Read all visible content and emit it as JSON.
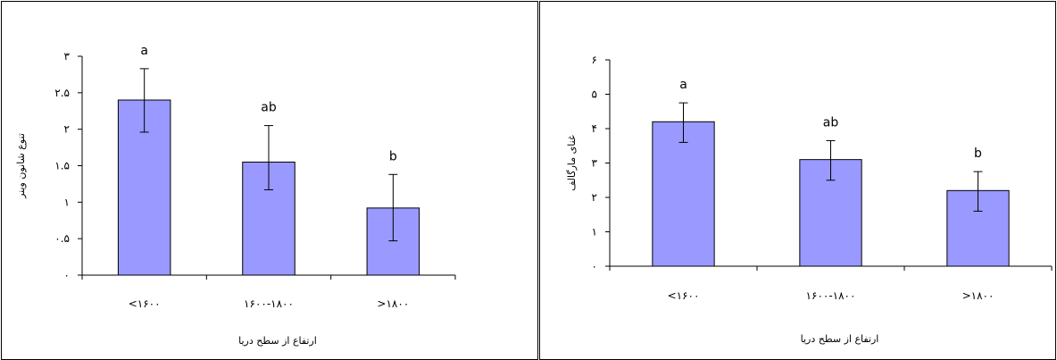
{
  "colors": {
    "bar_fill": "#9999ff",
    "bar_stroke": "#000000",
    "axis": "#000000",
    "background": "#ffffff"
  },
  "chart_data": [
    {
      "type": "bar",
      "categories": [
        "<۱۶۰۰",
        "۱۶۰۰-۱۸۰۰",
        ">۱۸۰۰"
      ],
      "values": [
        2.4,
        1.55,
        0.92
      ],
      "error_high": [
        2.83,
        2.05,
        1.38
      ],
      "error_low": [
        1.96,
        1.17,
        0.47
      ],
      "annotations": [
        "a",
        "ab",
        "b"
      ],
      "ylim": [
        0,
        3
      ],
      "yticks": [
        0,
        0.5,
        1,
        1.5,
        2,
        2.5,
        3
      ],
      "ytick_labels": [
        "۰",
        "۰.۵",
        "۱",
        "۱.۵",
        "۲",
        "۲.۵",
        "۳"
      ],
      "xlabel": "ارتفاع از سطح دریا",
      "ylabel": "تنوع شانون وینر",
      "grid": false,
      "legend": "none"
    },
    {
      "type": "bar",
      "categories": [
        "<۱۶۰۰",
        "۱۶۰۰-۱۸۰۰",
        ">۱۸۰۰"
      ],
      "values": [
        4.2,
        3.1,
        2.2
      ],
      "error_high": [
        4.75,
        3.65,
        2.75
      ],
      "error_low": [
        3.6,
        2.5,
        1.6
      ],
      "annotations": [
        "a",
        "ab",
        "b"
      ],
      "ylim": [
        0,
        6
      ],
      "yticks": [
        0,
        1,
        2,
        3,
        4,
        5,
        6
      ],
      "ytick_labels": [
        "۰",
        "۱",
        "۲",
        "۳",
        "۴",
        "۵",
        "۶"
      ],
      "xlabel": "ارتفاع از سطح دریا",
      "ylabel": "غنای مارگالف",
      "grid": false,
      "legend": "none"
    }
  ]
}
